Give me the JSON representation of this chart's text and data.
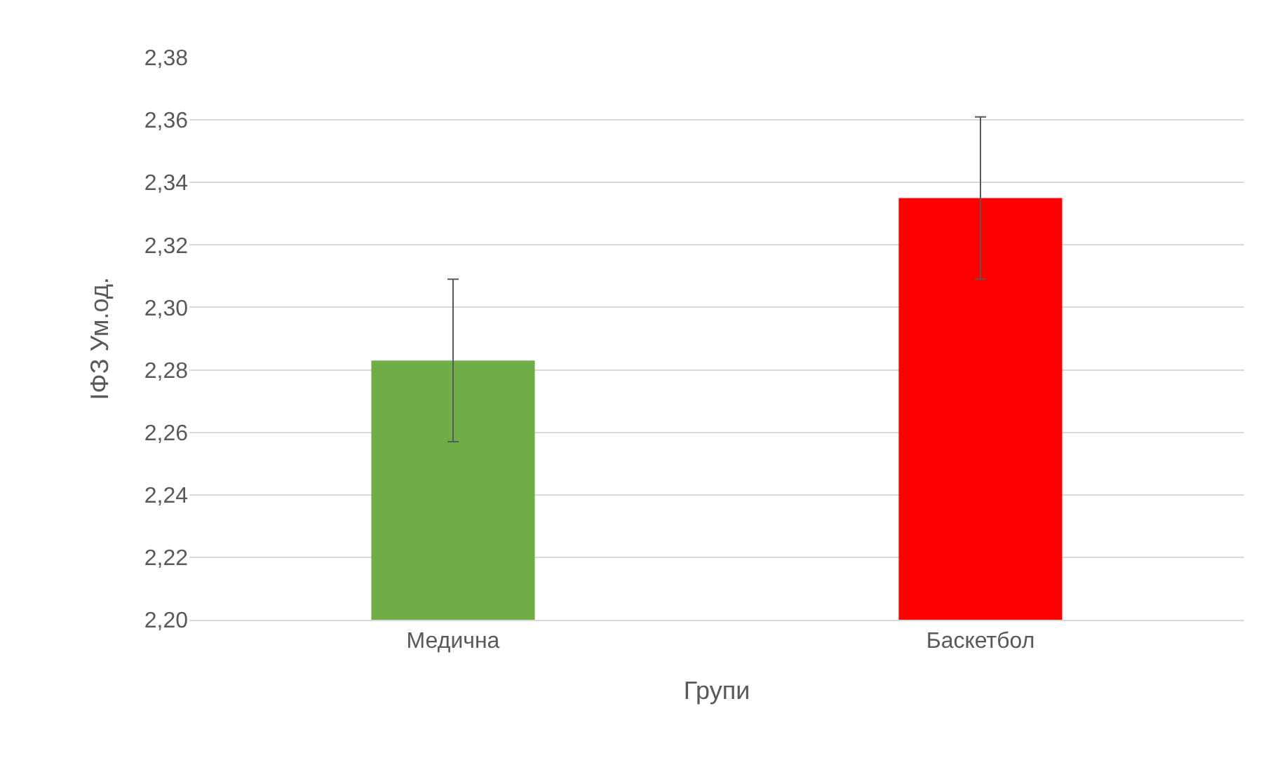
{
  "chart_data": {
    "type": "bar",
    "xlabel": "Групи",
    "ylabel": "ІФЗ Ум.од.",
    "categories": [
      "Медична",
      "Баскетбол"
    ],
    "values": [
      2.283,
      2.335
    ],
    "colors": [
      "#70ad47",
      "#ff0000"
    ],
    "errors": [
      0.026,
      0.026
    ],
    "ylim": [
      2.2,
      2.38
    ],
    "yticks": [
      {
        "value": 2.2,
        "label": "2,20"
      },
      {
        "value": 2.22,
        "label": "2,22"
      },
      {
        "value": 2.24,
        "label": "2,24"
      },
      {
        "value": 2.26,
        "label": "2,26"
      },
      {
        "value": 2.28,
        "label": "2,28"
      },
      {
        "value": 2.3,
        "label": "2,30"
      },
      {
        "value": 2.32,
        "label": "2,32"
      },
      {
        "value": 2.34,
        "label": "2,34"
      },
      {
        "value": 2.36,
        "label": "2,36"
      },
      {
        "value": 2.38,
        "label": "2,38"
      }
    ],
    "grid": "y"
  }
}
